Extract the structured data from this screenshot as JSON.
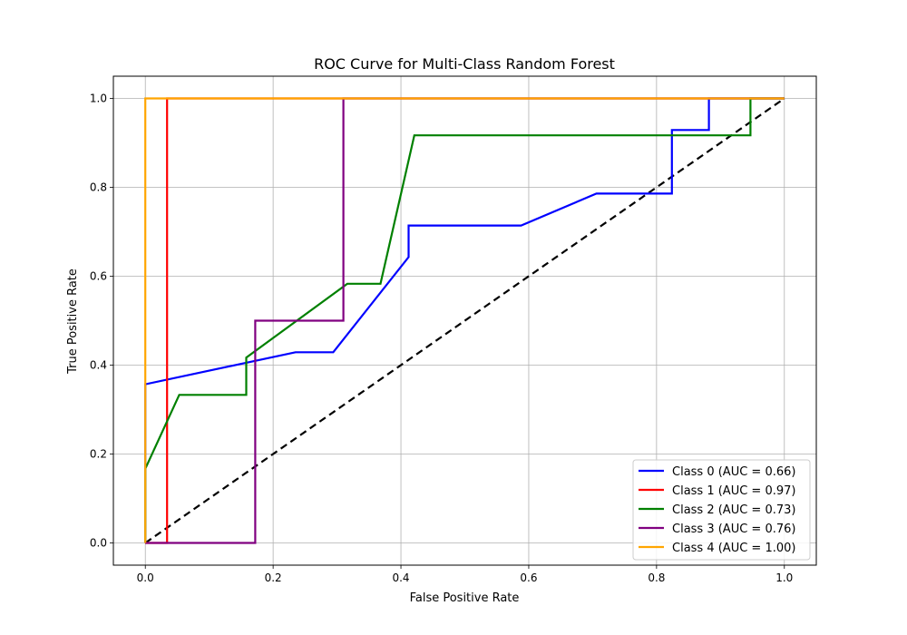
{
  "chart_data": {
    "type": "line",
    "title": "ROC Curve for Multi-Class Random Forest",
    "xlabel": "False Positive Rate",
    "ylabel": "True Positive Rate",
    "xlim": [
      -0.05,
      1.05
    ],
    "ylim": [
      -0.05,
      1.05
    ],
    "xticks": [
      "0.0",
      "0.2",
      "0.4",
      "0.6",
      "0.8",
      "1.0"
    ],
    "yticks": [
      "0.0",
      "0.2",
      "0.4",
      "0.6",
      "0.8",
      "1.0"
    ],
    "grid": true,
    "legend_position": "bottom-right",
    "series": [
      {
        "name": "Class 0 (AUC = 0.66)",
        "color": "#0000ff",
        "points": [
          [
            0,
            0
          ],
          [
            0,
            0.357
          ],
          [
            0.235,
            0.429
          ],
          [
            0.294,
            0.429
          ],
          [
            0.412,
            0.643
          ],
          [
            0.412,
            0.714
          ],
          [
            0.588,
            0.714
          ],
          [
            0.706,
            0.786
          ],
          [
            0.824,
            0.786
          ],
          [
            0.824,
            0.929
          ],
          [
            0.882,
            0.929
          ],
          [
            0.882,
            1.0
          ],
          [
            1.0,
            1.0
          ]
        ]
      },
      {
        "name": "Class 1 (AUC = 0.97)",
        "color": "#ff0000",
        "points": [
          [
            0,
            0
          ],
          [
            0.034,
            0
          ],
          [
            0.034,
            1.0
          ],
          [
            1.0,
            1.0
          ]
        ]
      },
      {
        "name": "Class 2 (AUC = 0.73)",
        "color": "#008000",
        "points": [
          [
            0,
            0
          ],
          [
            0,
            0.167
          ],
          [
            0.053,
            0.333
          ],
          [
            0.158,
            0.333
          ],
          [
            0.158,
            0.417
          ],
          [
            0.316,
            0.583
          ],
          [
            0.368,
            0.583
          ],
          [
            0.421,
            0.917
          ],
          [
            0.947,
            0.917
          ],
          [
            0.947,
            1.0
          ],
          [
            1.0,
            1.0
          ]
        ]
      },
      {
        "name": "Class 3 (AUC = 0.76)",
        "color": "#800080",
        "points": [
          [
            0,
            0
          ],
          [
            0.172,
            0
          ],
          [
            0.172,
            0.5
          ],
          [
            0.31,
            0.5
          ],
          [
            0.31,
            1.0
          ],
          [
            1.0,
            1.0
          ]
        ]
      },
      {
        "name": "Class 4 (AUC = 1.00)",
        "color": "#ffa500",
        "points": [
          [
            0,
            0
          ],
          [
            0,
            1.0
          ],
          [
            1.0,
            1.0
          ]
        ]
      }
    ],
    "reference_line": {
      "points": [
        [
          0,
          0
        ],
        [
          1,
          1
        ]
      ],
      "color": "#000000",
      "style": "dashed"
    }
  }
}
